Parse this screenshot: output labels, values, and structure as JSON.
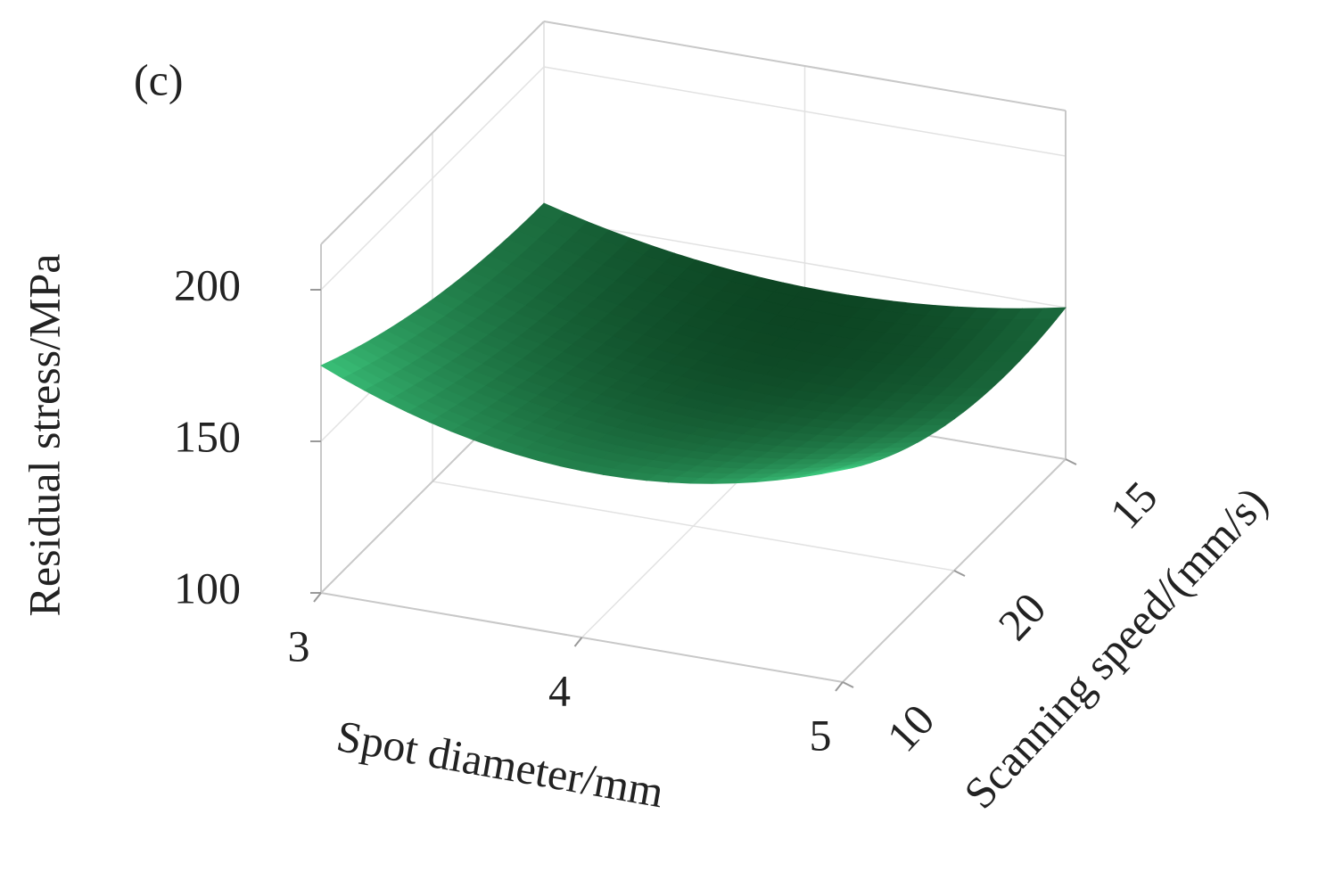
{
  "chart_data": {
    "type": "surface3d",
    "panel_label": "(c)",
    "xlabel": "Spot diameter/mm",
    "ylabel": "Scanning speed/(mm/s)",
    "zlabel": "Residual stress/MPa",
    "xlim": [
      3,
      5
    ],
    "xticks": [
      3,
      4,
      5
    ],
    "ycategories": [
      10,
      20,
      15
    ],
    "zlim": [
      100,
      215
    ],
    "zticks": [
      100,
      150,
      200
    ],
    "z": [
      [
        175,
        160,
        155
      ],
      [
        155,
        145,
        142
      ],
      [
        170,
        150,
        150
      ]
    ],
    "colors": [
      "#073518",
      "#45e08e"
    ]
  }
}
